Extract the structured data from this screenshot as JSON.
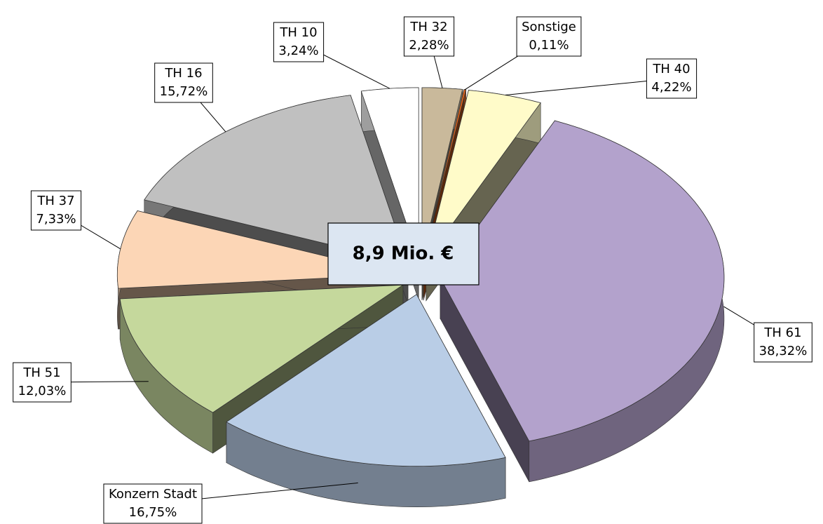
{
  "chart_data": {
    "type": "pie3d",
    "center_label": "8,9 Mio. €",
    "categories": [
      "TH 32",
      "Sonstige",
      "TH 40",
      "TH 61",
      "Konzern Stadt",
      "TH 51",
      "TH 37",
      "TH 16",
      "TH 10"
    ],
    "values": [
      2.28,
      0.11,
      4.22,
      38.32,
      16.75,
      12.03,
      7.33,
      15.72,
      3.24
    ],
    "value_labels": [
      "2,28%",
      "0,11%",
      "4,22%",
      "38,32%",
      "16,75%",
      "12,03%",
      "7,33%",
      "15,72%",
      "3,24%"
    ],
    "colors": [
      "#c9b99b",
      "#e2641a",
      "#fffbc9",
      "#b3a2cc",
      "#b9cde6",
      "#c5d89c",
      "#fcd6b6",
      "#c0c0c0",
      "#ffffff"
    ]
  }
}
